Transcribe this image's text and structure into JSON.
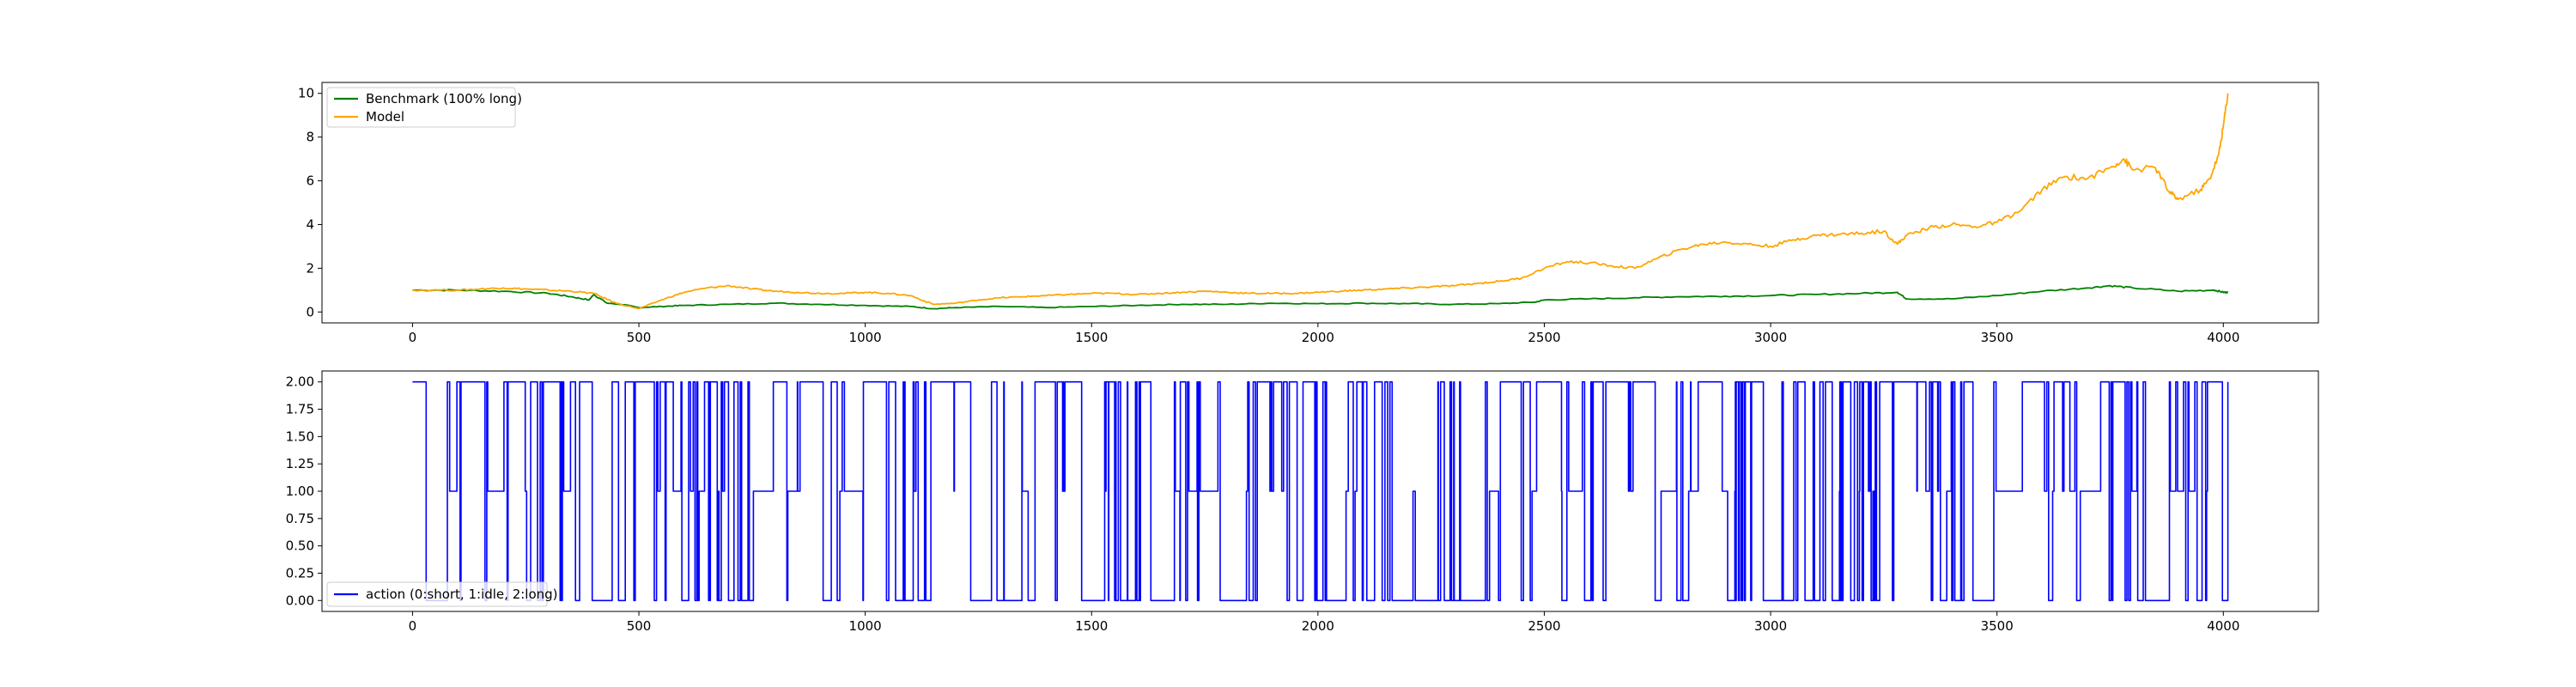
{
  "chart_data": [
    {
      "type": "line",
      "title": "",
      "xlabel": "",
      "ylabel": "",
      "xlim": [
        -200,
        4210
      ],
      "ylim": [
        -0.5,
        10.5
      ],
      "xticks": [
        0,
        500,
        1000,
        1500,
        2000,
        2500,
        3000,
        3500,
        4000
      ],
      "yticks": [
        0,
        2,
        4,
        6,
        8,
        10
      ],
      "grid": false,
      "legend_position": "upper left",
      "series": [
        {
          "name": "Benchmark (100% long)",
          "color": "#008000",
          "x": [
            0,
            100,
            200,
            300,
            350,
            390,
            400,
            430,
            460,
            500,
            550,
            600,
            700,
            800,
            900,
            1000,
            1100,
            1150,
            1200,
            1300,
            1400,
            1500,
            1600,
            1700,
            1800,
            1900,
            2000,
            2100,
            2200,
            2300,
            2400,
            2480,
            2500,
            2600,
            2700,
            2800,
            2900,
            3000,
            3100,
            3200,
            3280,
            3300,
            3400,
            3500,
            3600,
            3700,
            3750,
            3800,
            3900,
            3980,
            4000,
            4010
          ],
          "y": [
            1.0,
            1.0,
            0.95,
            0.85,
            0.7,
            0.55,
            0.8,
            0.4,
            0.35,
            0.2,
            0.25,
            0.3,
            0.35,
            0.4,
            0.35,
            0.3,
            0.25,
            0.15,
            0.2,
            0.25,
            0.2,
            0.25,
            0.3,
            0.35,
            0.35,
            0.4,
            0.38,
            0.4,
            0.38,
            0.35,
            0.38,
            0.45,
            0.55,
            0.6,
            0.65,
            0.7,
            0.72,
            0.75,
            0.8,
            0.85,
            0.9,
            0.6,
            0.6,
            0.75,
            0.95,
            1.1,
            1.2,
            1.1,
            0.95,
            1.0,
            0.9,
            0.9
          ]
        },
        {
          "name": "Model",
          "color": "#ffa500",
          "x": [
            0,
            100,
            150,
            200,
            250,
            300,
            350,
            400,
            450,
            500,
            550,
            600,
            650,
            700,
            750,
            800,
            850,
            900,
            950,
            1000,
            1050,
            1100,
            1150,
            1200,
            1250,
            1300,
            1350,
            1400,
            1450,
            1500,
            1550,
            1600,
            1650,
            1700,
            1750,
            1800,
            1850,
            1900,
            1950,
            2000,
            2050,
            2100,
            2150,
            2200,
            2250,
            2300,
            2350,
            2400,
            2450,
            2500,
            2550,
            2600,
            2650,
            2700,
            2750,
            2800,
            2850,
            2900,
            2950,
            3000,
            3050,
            3100,
            3150,
            3200,
            3250,
            3280,
            3300,
            3350,
            3400,
            3450,
            3500,
            3550,
            3600,
            3650,
            3700,
            3750,
            3780,
            3800,
            3850,
            3880,
            3900,
            3950,
            3970,
            3990,
            4000,
            4010
          ],
          "y": [
            1.0,
            1.0,
            1.05,
            1.1,
            1.05,
            1.0,
            0.95,
            0.85,
            0.4,
            0.15,
            0.55,
            0.9,
            1.1,
            1.2,
            1.05,
            0.95,
            0.9,
            0.85,
            0.85,
            0.9,
            0.85,
            0.75,
            0.35,
            0.4,
            0.55,
            0.65,
            0.7,
            0.75,
            0.8,
            0.85,
            0.85,
            0.8,
            0.85,
            0.9,
            0.95,
            0.9,
            0.85,
            0.85,
            0.85,
            0.9,
            0.95,
            1.0,
            1.05,
            1.1,
            1.15,
            1.2,
            1.3,
            1.4,
            1.55,
            2.0,
            2.3,
            2.25,
            2.1,
            2.0,
            2.45,
            2.85,
            3.1,
            3.2,
            3.1,
            3.0,
            3.3,
            3.5,
            3.55,
            3.6,
            3.7,
            3.1,
            3.5,
            3.85,
            4.0,
            3.9,
            4.1,
            4.6,
            5.6,
            6.2,
            6.1,
            6.6,
            7.0,
            6.5,
            6.6,
            5.5,
            5.15,
            5.6,
            6.1,
            7.2,
            8.5,
            10.0
          ]
        }
      ]
    },
    {
      "type": "line",
      "title": "",
      "xlabel": "",
      "ylabel": "",
      "xlim": [
        -200,
        4210
      ],
      "ylim": [
        -0.1,
        2.1
      ],
      "xticks": [
        0,
        500,
        1000,
        1500,
        2000,
        2500,
        3000,
        3500,
        4000
      ],
      "yticks": [
        0,
        0.25,
        0.5,
        0.75,
        1.0,
        1.25,
        1.5,
        1.75,
        2.0
      ],
      "ytick_labels": [
        "0.00",
        "0.25",
        "0.50",
        "0.75",
        "1.00",
        "1.25",
        "1.50",
        "1.75",
        "2.00"
      ],
      "grid": false,
      "legend_position": "lower left",
      "series": [
        {
          "name": "action (0:short, 1:idle, 2:long)",
          "color": "#0000ff",
          "step": true,
          "x_range": [
            0,
            4010
          ],
          "values_allowed": [
            0,
            1,
            2
          ],
          "note_values_are_discrete_switches": true
        }
      ]
    }
  ]
}
